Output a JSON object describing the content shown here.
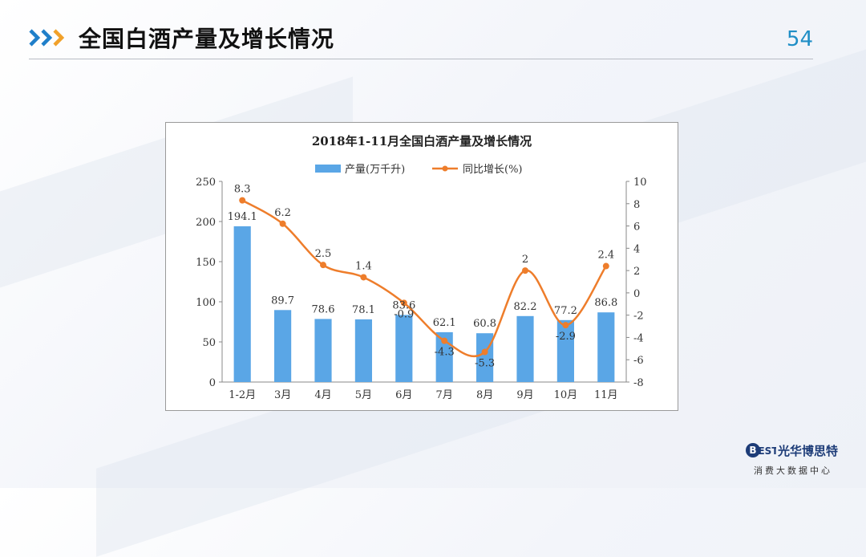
{
  "slide": {
    "title": "全国白酒产量及增长情况",
    "page_number": "54"
  },
  "logo": {
    "name": "光华博思特",
    "brand_mark": "BEST",
    "tagline": "消费大数据中心"
  },
  "colors": {
    "bar": "#5aa6e6",
    "line": "#ee7d2b",
    "title_arrow_primary": "#1f7fc9",
    "title_arrow_accent": "#f1a12a",
    "page_number": "#1f8ec6",
    "brand": "#1d3c78"
  },
  "icons": {
    "header": "triple-chevron-right-icon",
    "logo": "best-logo-icon"
  },
  "chart_data": {
    "type": "bar",
    "title": "2018年1-11月全国白酒产量及增长情况",
    "categories": [
      "1-2月",
      "3月",
      "4月",
      "5月",
      "6月",
      "7月",
      "8月",
      "9月",
      "10月",
      "11月"
    ],
    "series": [
      {
        "name": "产量(万千升)",
        "type": "bar",
        "axis": "left",
        "values": [
          194.1,
          89.7,
          78.6,
          78.1,
          83.6,
          62.1,
          60.8,
          82.2,
          77.2,
          86.8
        ],
        "labels": [
          "194.1",
          "89.7",
          "78.6",
          "78.1",
          "83.6",
          "62.1",
          "60.8",
          "82.2",
          "77.2",
          "86.8"
        ]
      },
      {
        "name": "同比增长(%)",
        "type": "line",
        "axis": "right",
        "values": [
          8.3,
          6.2,
          2.5,
          1.4,
          -0.9,
          -4.3,
          -5.3,
          2,
          -2.9,
          2.4
        ],
        "labels": [
          "8.3",
          "6.2",
          "2.5",
          "1.4",
          "-0.9",
          "-4.3",
          "-5.3",
          "2",
          "-2.9",
          "2.4"
        ]
      }
    ],
    "y_left": {
      "min": 0,
      "max": 250,
      "ticks": [
        "0",
        "50",
        "100",
        "150",
        "200",
        "250"
      ]
    },
    "y_right": {
      "min": -8,
      "max": 10,
      "ticks": [
        "-8",
        "-6",
        "-4",
        "-2",
        "0",
        "2",
        "4",
        "6",
        "8",
        "10"
      ]
    },
    "grid": false,
    "legend_position": "top"
  }
}
